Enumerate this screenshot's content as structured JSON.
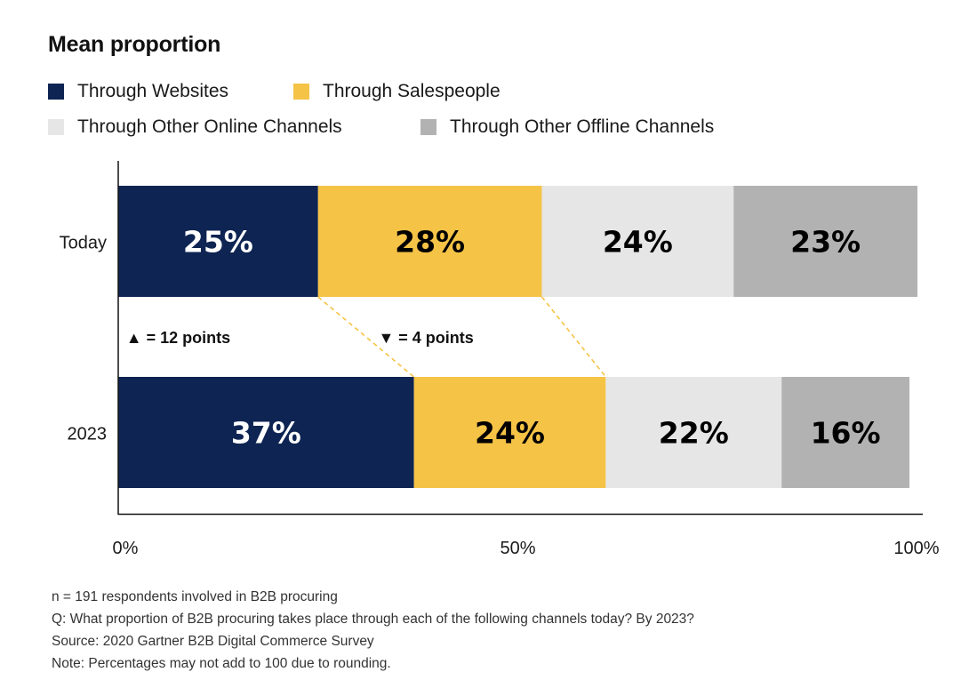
{
  "chart_data": {
    "type": "bar",
    "orientation": "horizontal-stacked",
    "title": "Mean proportion",
    "categories": [
      "Today",
      "2023"
    ],
    "series": [
      {
        "name": "Through Websites",
        "values": [
          25,
          37
        ],
        "labels": [
          "25%",
          "37%"
        ],
        "color": "#0e2452",
        "label_color": "#ffffff"
      },
      {
        "name": "Through Salespeople",
        "values": [
          28,
          24
        ],
        "labels": [
          "28%",
          "24%"
        ],
        "color": "#f5c346",
        "label_color": "#000000"
      },
      {
        "name": "Through Other Online Channels",
        "values": [
          24,
          22
        ],
        "labels": [
          "24%",
          "22%"
        ],
        "color": "#e6e6e6",
        "label_color": "#000000"
      },
      {
        "name": "Through Other Offline Channels",
        "values": [
          23,
          16
        ],
        "labels": [
          "23%",
          "16%"
        ],
        "color": "#b2b2b2",
        "label_color": "#000000"
      }
    ],
    "xlim": [
      0,
      100
    ],
    "x_ticks": [
      {
        "value": 0,
        "label": "0%"
      },
      {
        "value": 50,
        "label": "50%"
      },
      {
        "value": 100,
        "label": "100%"
      }
    ],
    "grid": false,
    "legend_position": "top-left",
    "annotations": [
      {
        "symbol": "▲",
        "text": "= 12 points",
        "series": "Through Websites"
      },
      {
        "symbol": "▼",
        "text": "= 4 points",
        "series": "Through Salespeople"
      }
    ],
    "connector_color": "#f5c346"
  },
  "notes": [
    "n = 191 respondents involved in B2B procuring",
    "Q: What proportion of B2B procuring takes place through each of the following channels today? By 2023?",
    "Source: 2020 Gartner B2B Digital Commerce Survey",
    "Note: Percentages may not add to 100 due to rounding."
  ]
}
